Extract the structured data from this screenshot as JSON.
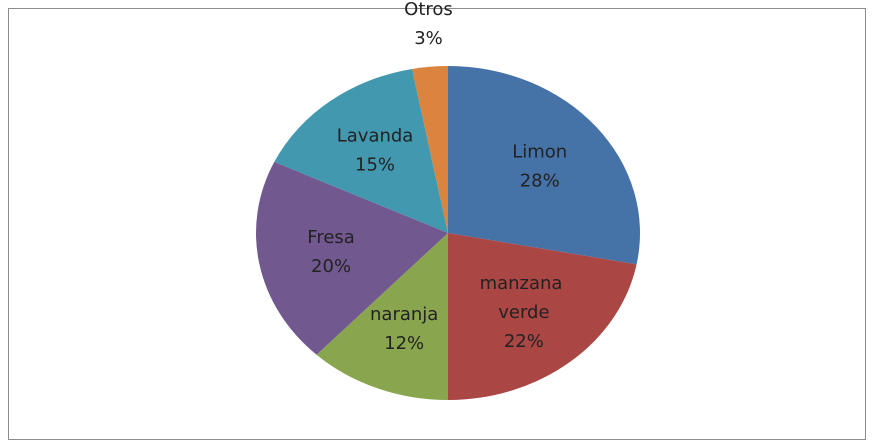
{
  "chart_data": {
    "type": "pie",
    "categories": [
      "Limon",
      "manzana verde",
      "naranja",
      "Fresa",
      "Lavanda",
      "Otros"
    ],
    "values": [
      28,
      22,
      12,
      20,
      15,
      3
    ],
    "value_labels": [
      "28%",
      "22%",
      "12%",
      "20%",
      "15%",
      "3%"
    ],
    "colors": [
      "#4572a7",
      "#aa4643",
      "#89a54e",
      "#71588f",
      "#4198af",
      "#db843d"
    ]
  }
}
